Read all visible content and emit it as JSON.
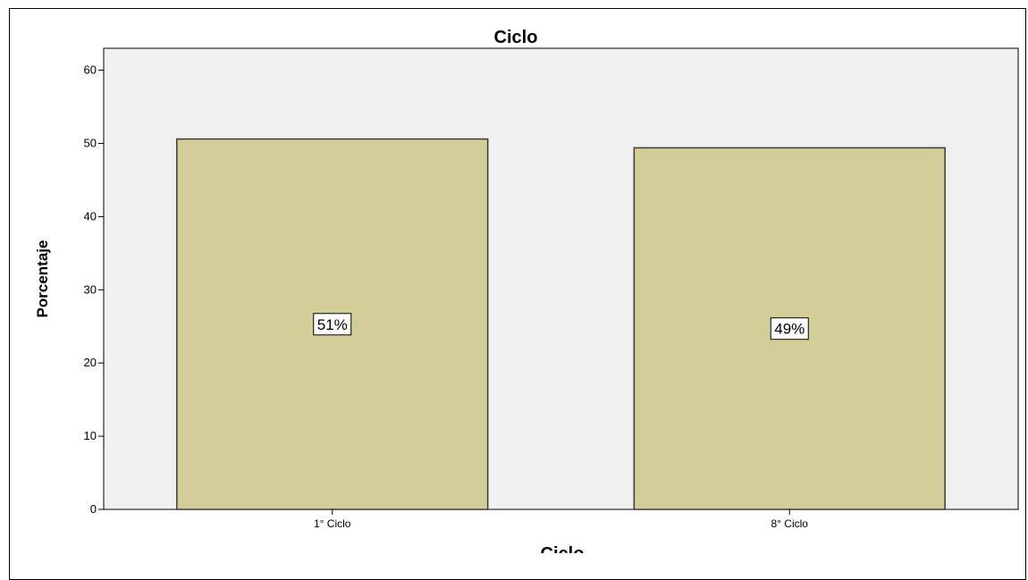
{
  "chart_data": {
    "type": "bar",
    "title": "Ciclo",
    "xlabel": "Ciclo",
    "ylabel": "Porcentaje",
    "categories": [
      "1° Ciclo",
      "8° Ciclo"
    ],
    "values": [
      50.6,
      49.4
    ],
    "data_labels": [
      "51%",
      "49%"
    ],
    "ylim": [
      0,
      63
    ],
    "yticks": [
      0,
      10,
      20,
      30,
      40,
      50,
      60
    ],
    "grid": false,
    "legend": "none",
    "colors": {
      "bar_fill": "#d3cd97",
      "bar_stroke": "#3a3a3a",
      "plot_background": "#f0f0f0"
    }
  }
}
